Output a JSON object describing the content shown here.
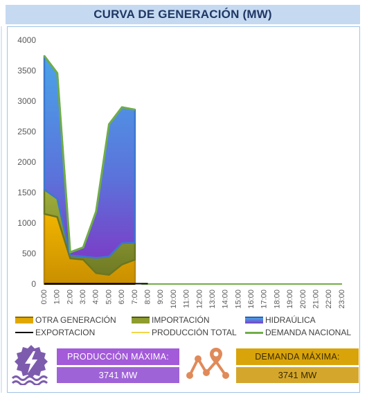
{
  "title": "CURVA DE GENERACIÓN (MW)",
  "colors": {
    "otra": "#e0a800",
    "importacion": "#8f9c2e",
    "hidraulica_top": "#4aa3e8",
    "hidraulica_bottom": "#7a3fc7",
    "exportacion": "#000000",
    "produccion": "#f2d649",
    "demanda": "#70ad47",
    "kpi_purple": "#a35bd9",
    "kpi_purple_value": "#9f63d8",
    "kpi_gold": "#d9a40a",
    "kpi_gold_value": "#d4a72c"
  },
  "chart_data": {
    "type": "area",
    "stacked": true,
    "categories": [
      "0:00",
      "1:00",
      "2:00",
      "3:00",
      "4:00",
      "5:00",
      "6:00",
      "7:00",
      "8:00",
      "9:00",
      "10:00",
      "11:00",
      "12:00",
      "13:00",
      "14:00",
      "15:00",
      "16:00",
      "17:00",
      "18:00",
      "19:00",
      "20:00",
      "21:00",
      "22:00",
      "23:00"
    ],
    "ylim": [
      0,
      4000
    ],
    "yticks": [
      0,
      500,
      1000,
      1500,
      2000,
      2500,
      3000,
      3500,
      4000
    ],
    "grid": false,
    "legend_position": "bottom",
    "series": [
      {
        "name": "OTRA GENERACIÓN",
        "kind": "area",
        "values": [
          1150,
          1100,
          420,
          400,
          180,
          150,
          320,
          400,
          0,
          0,
          0,
          0,
          0,
          0,
          0,
          0,
          0,
          0,
          0,
          0,
          0,
          0,
          0,
          0
        ]
      },
      {
        "name": "IMPORTACIÓN",
        "kind": "area",
        "values": [
          400,
          300,
          50,
          50,
          250,
          300,
          350,
          280,
          0,
          0,
          0,
          0,
          0,
          0,
          0,
          0,
          0,
          0,
          0,
          0,
          0,
          0,
          0,
          0
        ]
      },
      {
        "name": "HIDRAÚLICA",
        "kind": "area",
        "values": [
          2190,
          2060,
          50,
          150,
          760,
          2170,
          2230,
          2180,
          0,
          0,
          0,
          0,
          0,
          0,
          0,
          0,
          0,
          0,
          0,
          0,
          0,
          0,
          0,
          0
        ]
      },
      {
        "name": "EXPORTACION",
        "kind": "line",
        "values": [
          0,
          0,
          0,
          0,
          0,
          0,
          0,
          0,
          0,
          0,
          0,
          0,
          0,
          0,
          0,
          0,
          0,
          0,
          0,
          0,
          0,
          0,
          0,
          0
        ]
      },
      {
        "name": "PRODUCCIÓN TOTAL",
        "kind": "line",
        "values": [
          3741,
          3460,
          520,
          600,
          1190,
          2620,
          2900,
          2860,
          0,
          0,
          0,
          0,
          0,
          0,
          0,
          0,
          0,
          0,
          0,
          0,
          0,
          0,
          0,
          0
        ]
      },
      {
        "name": "DEMANDA NACIONAL",
        "kind": "line",
        "values": [
          3741,
          3460,
          520,
          600,
          1190,
          2620,
          2900,
          2860,
          0,
          0,
          0,
          0,
          0,
          0,
          0,
          0,
          0,
          0,
          0,
          0,
          0,
          0,
          0,
          0
        ]
      }
    ],
    "data_points_available": 8
  },
  "kpis": {
    "produccion": {
      "label": "PRODUCCIÓN MÁXIMA:",
      "value": "3741 MW",
      "icon": "hydro-power-icon"
    },
    "demanda": {
      "label": "DEMANDA MÁXIMA:",
      "value": "3741 MW",
      "icon": "demand-route-icon"
    }
  }
}
